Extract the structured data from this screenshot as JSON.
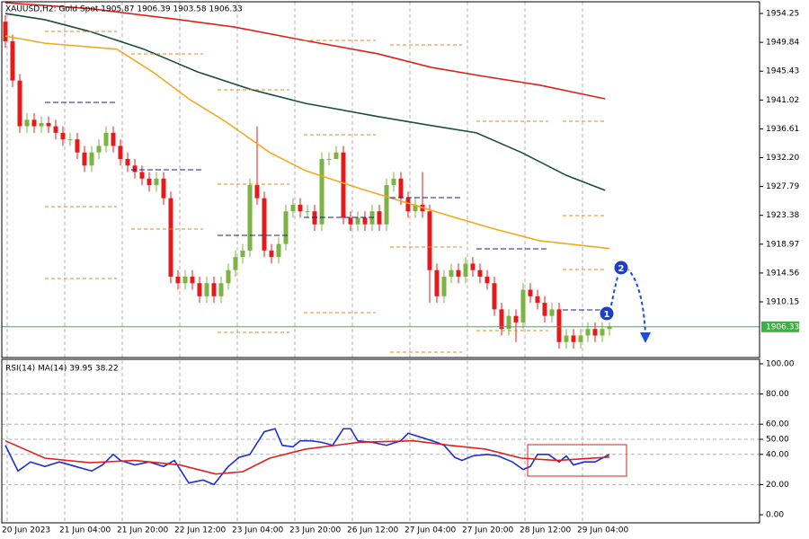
{
  "chart_data": [
    {
      "type": "candlestick",
      "title": "XAUUSD,H2:  Gold Spot  1905.87 1906.39 1903.58 1906.33",
      "categories": [
        "20 Jun 2023",
        null,
        null,
        null,
        null,
        null,
        null,
        null,
        "21 Jun 04:00",
        null,
        null,
        null,
        null,
        null,
        null,
        null,
        "21 Jun 20:00",
        null,
        null,
        null,
        null,
        null,
        null,
        null,
        "22 Jun 12:00",
        null,
        null,
        null,
        null,
        null,
        null,
        null,
        "23 Jun 04:00",
        null,
        null,
        null,
        null,
        null,
        null,
        null,
        "23 Jun 20:00",
        null,
        null,
        null,
        null,
        null,
        null,
        null,
        "26 Jun 12:00",
        null,
        null,
        null,
        null,
        null,
        null,
        null,
        "27 Jun 04:00",
        null,
        null,
        null,
        null,
        null,
        null,
        null,
        "27 Jun 20:00",
        null,
        null,
        null,
        null,
        null,
        null,
        null,
        "28 Jun 12:00",
        null,
        null,
        null,
        null,
        null,
        null,
        null,
        "29 Jun 04:00",
        null,
        null,
        null,
        null
      ],
      "open": [
        1953,
        1950,
        1944,
        1937,
        1938,
        1937,
        1937.5,
        1937,
        1936,
        1935,
        1935,
        1933,
        1931,
        1933,
        1934,
        1936,
        1934,
        1932,
        1931,
        1930,
        1929,
        1928,
        1929,
        1926,
        1914,
        1913,
        1914,
        1913,
        1911,
        1913,
        1911,
        1913,
        1915,
        1917,
        1918,
        1928,
        1926,
        1918,
        1917,
        1919,
        1924,
        1925,
        1924,
        1924,
        1922,
        1932,
        1932,
        1933,
        1923,
        1922,
        1923,
        1922,
        1924,
        1922,
        1928,
        1929,
        1926,
        1924,
        1925,
        1924,
        1915,
        1911,
        1914,
        1915,
        1914,
        1916,
        1915,
        1914,
        1913,
        1909,
        1906,
        1908,
        1907,
        1912,
        1911,
        1910,
        1908,
        1909,
        1904,
        1905,
        1904,
        1905,
        1906,
        1905,
        1906
      ],
      "high": [
        1954,
        1951,
        1945,
        1939,
        1939,
        1938.5,
        1938.5,
        1938,
        1937,
        1936,
        1936,
        1934,
        1934,
        1935,
        1937,
        1937,
        1935,
        1933,
        1932,
        1931,
        1930,
        1930,
        1930,
        1927,
        1915,
        1915,
        1915,
        1914,
        1914,
        1914,
        1914,
        1916,
        1918,
        1919,
        1929,
        1937,
        1927,
        1919,
        1920,
        1925,
        1926,
        1926,
        1925,
        1925,
        1933,
        1933,
        1934,
        1934,
        1924,
        1924,
        1924,
        1925,
        1925,
        1929,
        1930,
        1930,
        1927,
        1926,
        1930,
        1925,
        1916,
        1915,
        1916,
        1916,
        1917,
        1917,
        1916,
        1915,
        1914,
        1910,
        1909,
        1909,
        1913,
        1913,
        1912,
        1911,
        1910,
        1910,
        1906,
        1906,
        1906,
        1907,
        1907,
        1907,
        1907
      ],
      "low": [
        1949,
        1943,
        1936,
        1936,
        1936,
        1936,
        1936,
        1935,
        1934,
        1934,
        1932,
        1930,
        1930,
        1932,
        1933,
        1933,
        1931,
        1930,
        1929,
        1928,
        1927,
        1927,
        1925,
        1913,
        1912,
        1912,
        1912,
        1910,
        1910,
        1910,
        1910,
        1912,
        1914,
        1916,
        1917,
        1925,
        1917,
        1916,
        1916,
        1918,
        1923,
        1923,
        1923,
        1921,
        1921,
        1931,
        1932,
        1922,
        1921,
        1921,
        1921,
        1921,
        1921,
        1921,
        1927,
        1925,
        1923,
        1923,
        1923,
        1910,
        1910,
        1910,
        1913,
        1913,
        1913,
        1914,
        1913,
        1912,
        1908,
        1905,
        1905,
        1904,
        1906,
        1910,
        1909,
        1907,
        1907,
        1903,
        1903,
        1903,
        1903,
        1904,
        1904,
        1904,
        1905
      ],
      "close": [
        1950,
        1944,
        1937,
        1938,
        1937,
        1937.5,
        1937,
        1936,
        1935,
        1935,
        1933,
        1931,
        1933,
        1934,
        1936,
        1934,
        1932,
        1931,
        1930,
        1929,
        1928,
        1929,
        1926,
        1914,
        1913,
        1914,
        1913,
        1911,
        1913,
        1911,
        1913,
        1915,
        1917,
        1918,
        1928,
        1926,
        1918,
        1917,
        1919,
        1924,
        1925,
        1924,
        1924,
        1922,
        1932,
        1932,
        1933,
        1923,
        1922,
        1923,
        1922,
        1924,
        1922,
        1928,
        1929,
        1926,
        1924,
        1925,
        1924,
        1915,
        1911,
        1914,
        1915,
        1914,
        1916,
        1915,
        1914,
        1913,
        1909,
        1906,
        1908,
        1907,
        1912,
        1911,
        1910,
        1908,
        1909,
        1904,
        1905,
        1904,
        1905,
        1906,
        1905,
        1906,
        1906.33
      ],
      "up_color": "#7cb342",
      "down_color": "#e41b1b",
      "ylim": [
        1901.63,
        1956.04
      ],
      "yticks": [
        1954.25,
        1949.84,
        1945.43,
        1941.02,
        1936.61,
        {
          "value": 1932.2,
          "label": "1932.20"
        },
        1927.79,
        1923.38,
        1918.97,
        1914.56,
        1910.15
      ],
      "grid": true,
      "overlays": [
        {
          "color": "#f5a81c",
          "x": [
            0,
            5.5,
            15.5,
            20.5,
            25.5,
            30.5,
            36.75,
            41.75,
            49.25,
            55.5,
            61.75,
            68,
            74.25,
            84
          ],
          "values": [
            1950.8,
            1949.7,
            1948.8,
            1945.3,
            1941.2,
            1937.8,
            1933,
            1930.2,
            1927.5,
            1925.4,
            1923.3,
            1921.3,
            1919.5,
            1918.3
          ]
        },
        {
          "color": "#1d4d3f",
          "x": [
            0,
            5.5,
            11.75,
            19.25,
            26.75,
            34.25,
            41.75,
            51.75,
            59.25,
            65.5,
            71.75,
            78,
            83.4
          ],
          "values": [
            1954.25,
            1953.3,
            1951.5,
            1948.8,
            1945.3,
            1942.6,
            1940.5,
            1938.5,
            1937.1,
            1936,
            1933,
            1929.5,
            1927.2
          ]
        },
        {
          "color": "#e0201c",
          "x": [
            0,
            11.75,
            24.25,
            31.75,
            41.75,
            51.75,
            59.25,
            66.75,
            74.25,
            83.4
          ],
          "values": [
            1955.9,
            1955,
            1953.3,
            1952.2,
            1950.1,
            1948.1,
            1946,
            1944.6,
            1943.3,
            1941.2
          ]
        }
      ],
      "last_price": 1906.33,
      "last_price_color": "#3cb043",
      "annotations": [
        "1",
        "2"
      ]
    },
    {
      "type": "line",
      "title": "RSI(14) MA(14) 39.95 38.22",
      "ylim": [
        -5.36,
        102.98
      ],
      "yticks": [
        {
          "value": 100,
          "label": "100.00"
        },
        {
          "value": 80,
          "label": "80.00"
        },
        {
          "value": 60,
          "label": "60.00"
        },
        {
          "value": 50,
          "label": "50.00"
        },
        {
          "value": 40,
          "label": "40.00"
        },
        {
          "value": 20,
          "label": "20.00"
        },
        {
          "value": 0,
          "label": "0.00"
        }
      ],
      "grid": true,
      "series": [
        {
          "color": "#1c2fd6",
          "x": [
            0,
            1.75,
            3.5,
            5.5,
            7.5,
            9,
            12,
            13.5,
            15,
            16,
            18,
            20,
            22,
            23.5,
            25.5,
            27.5,
            29,
            31,
            32.5,
            34,
            36,
            37.5,
            38.5,
            40,
            41,
            42.5,
            44,
            45.5,
            47,
            48,
            49,
            51,
            53,
            55,
            56,
            58,
            60,
            61,
            62.5,
            63.5,
            65,
            67,
            68.5,
            70.5,
            72,
            73,
            74,
            75.5,
            77,
            78,
            79,
            80.5,
            82,
            84
          ],
          "values": [
            46,
            29,
            35,
            32,
            35,
            33,
            29,
            33,
            40,
            36,
            33,
            35,
            32,
            36,
            21,
            23,
            20,
            32,
            38,
            40,
            55,
            57,
            46,
            45,
            49,
            49,
            48,
            46,
            57,
            57,
            49,
            48,
            46,
            49,
            54,
            51,
            48,
            46,
            38,
            36,
            39,
            40,
            39,
            35,
            30,
            32,
            40,
            40,
            35,
            39,
            33,
            35,
            35,
            39.95
          ]
        },
        {
          "color": "#e0201c",
          "x": [
            0,
            5.5,
            11.75,
            18,
            24.25,
            29.25,
            33,
            36.75,
            41.75,
            49.25,
            56.75,
            61.75,
            66.75,
            71.75,
            76.75,
            84
          ],
          "values": [
            49,
            37.5,
            34.5,
            36,
            33,
            27,
            28.5,
            37.5,
            43.5,
            48,
            49,
            46,
            43.5,
            37.5,
            36,
            38.22
          ]
        }
      ]
    }
  ]
}
